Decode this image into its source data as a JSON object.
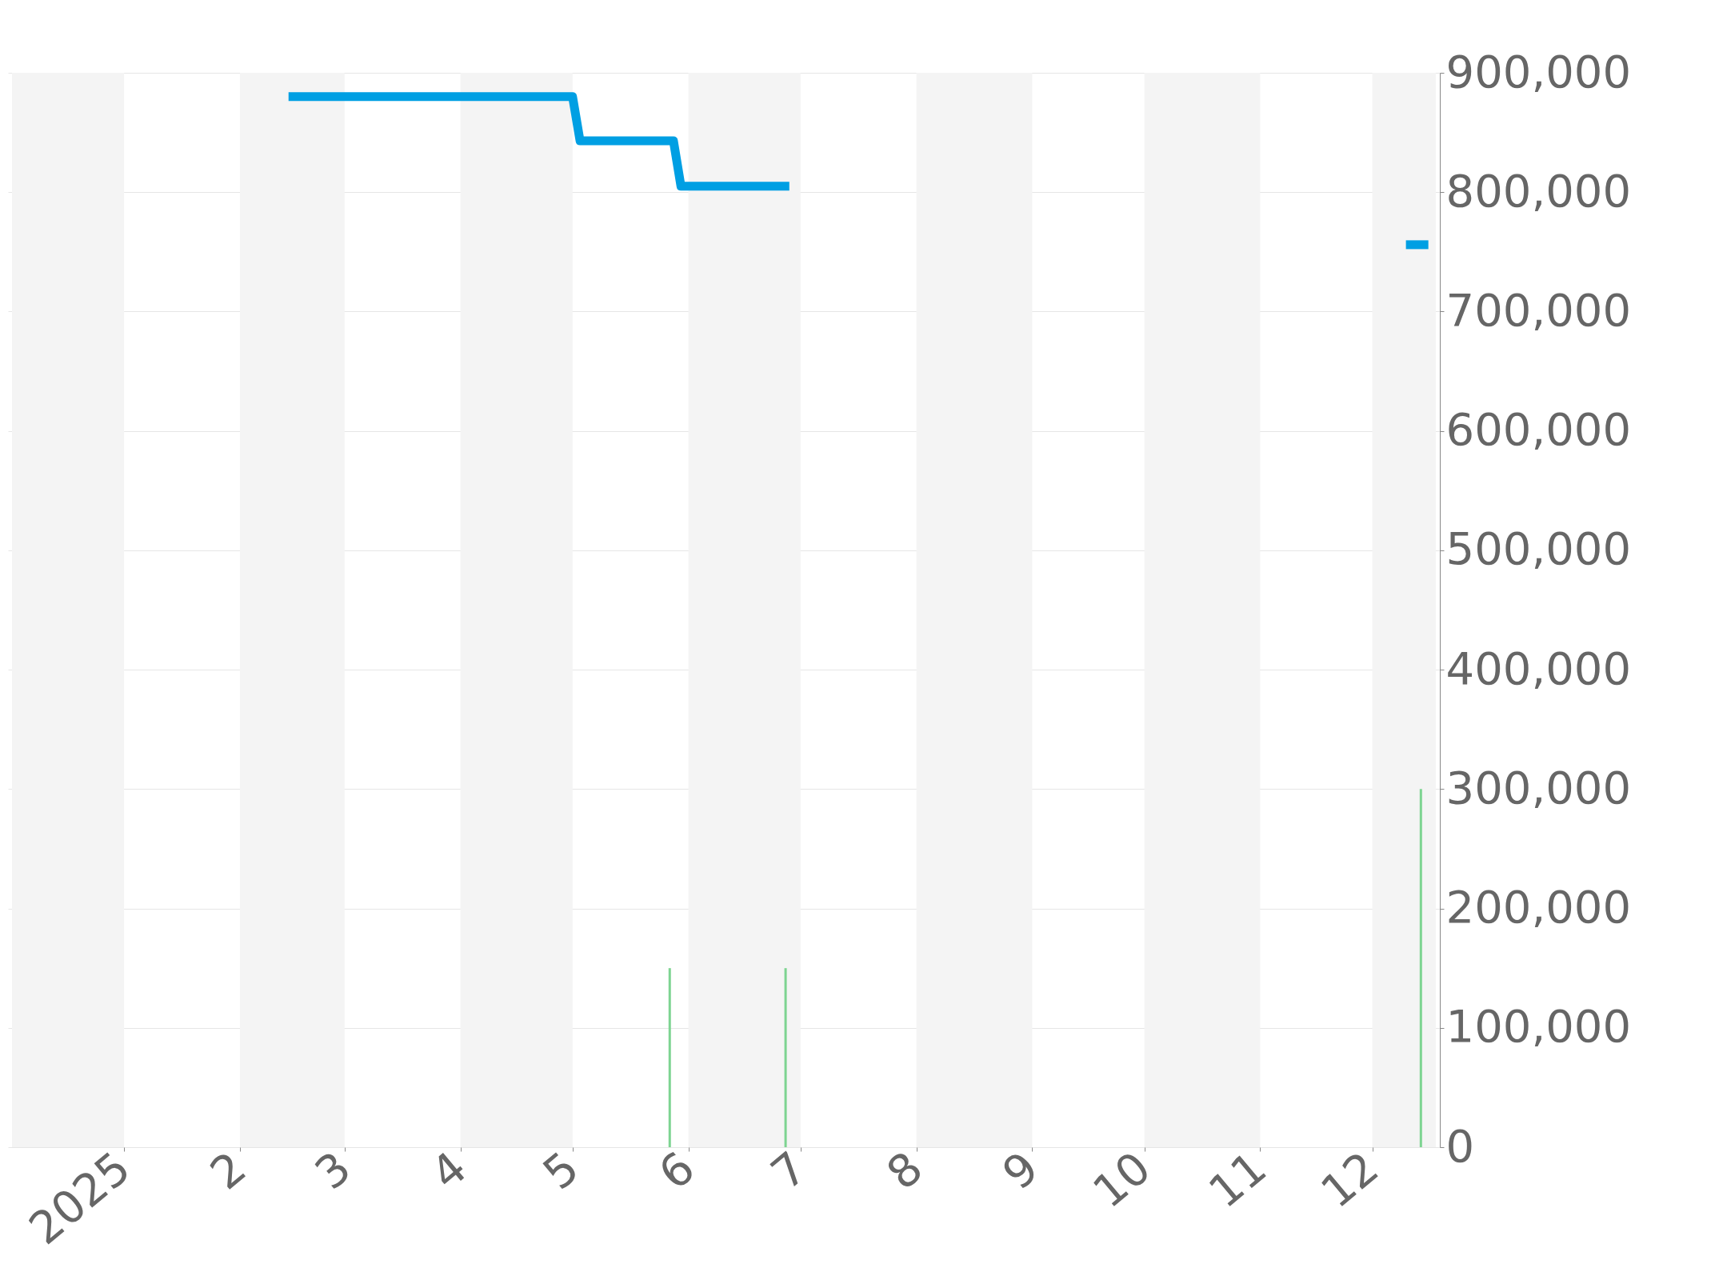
{
  "chart_data": {
    "type": "line",
    "series": [
      {
        "color": "#009fe3",
        "x": [
          "2025-02-14",
          "2025-05-01",
          "2025-05-03",
          "2025-05-28",
          "2025-05-30",
          "2025-06-28"
        ],
        "values": [
          880000,
          880000,
          843000,
          843000,
          805000,
          805000
        ]
      },
      {
        "color": "#009fe3",
        "x": [
          "2025-12-10",
          "2025-12-16"
        ],
        "values": [
          756000,
          756000
        ]
      },
      {
        "type": "bar",
        "color": "#7dd491",
        "x": [
          "2025-05-27",
          "2025-06-27",
          "2025-12-14"
        ],
        "values": [
          150000,
          150000,
          300000
        ]
      }
    ],
    "xlim": [
      "2024-12-02",
      "2025-12-18"
    ],
    "xticks": [
      {
        "value": "2025-01-01",
        "label": "2025"
      },
      {
        "value": "2025-02-01",
        "label": "2"
      },
      {
        "value": "2025-03-01",
        "label": "3"
      },
      {
        "value": "2025-04-01",
        "label": "4"
      },
      {
        "value": "2025-05-01",
        "label": "5"
      },
      {
        "value": "2025-06-01",
        "label": "6"
      },
      {
        "value": "2025-07-01",
        "label": "7"
      },
      {
        "value": "2025-08-01",
        "label": "8"
      },
      {
        "value": "2025-09-01",
        "label": "9"
      },
      {
        "value": "2025-10-01",
        "label": "10"
      },
      {
        "value": "2025-11-01",
        "label": "11"
      },
      {
        "value": "2025-12-01",
        "label": "12"
      }
    ],
    "ylim": [
      0,
      900000
    ],
    "yticks": [
      0,
      {
        "value": 100000,
        "label": "100,000"
      },
      {
        "value": 200000,
        "label": "200,000"
      },
      {
        "value": 300000,
        "label": "300,000"
      },
      {
        "value": 400000,
        "label": "400,000"
      },
      {
        "value": 500000,
        "label": "500,000"
      },
      {
        "value": 600000,
        "label": "600,000"
      },
      {
        "value": 700000,
        "label": "700,000"
      },
      {
        "value": 800000,
        "label": "800,000"
      },
      {
        "value": 900000,
        "label": "900,000"
      }
    ],
    "bands": [
      {
        "axis": "x",
        "from": "2024-12-02",
        "to": "2025-01-01",
        "color": "#f4f4f4"
      },
      {
        "axis": "x",
        "from": "2025-02-01",
        "to": "2025-03-01",
        "color": "#f4f4f4"
      },
      {
        "axis": "x",
        "from": "2025-04-01",
        "to": "2025-05-01",
        "color": "#f4f4f4"
      },
      {
        "axis": "x",
        "from": "2025-06-01",
        "to": "2025-07-01",
        "color": "#f4f4f4"
      },
      {
        "axis": "x",
        "from": "2025-08-01",
        "to": "2025-09-01",
        "color": "#f4f4f4"
      },
      {
        "axis": "x",
        "from": "2025-10-01",
        "to": "2025-11-01",
        "color": "#f4f4f4"
      },
      {
        "axis": "x",
        "from": "2025-12-01",
        "to": "2025-12-18",
        "color": "#f4f4f4"
      }
    ],
    "grid": "y"
  }
}
